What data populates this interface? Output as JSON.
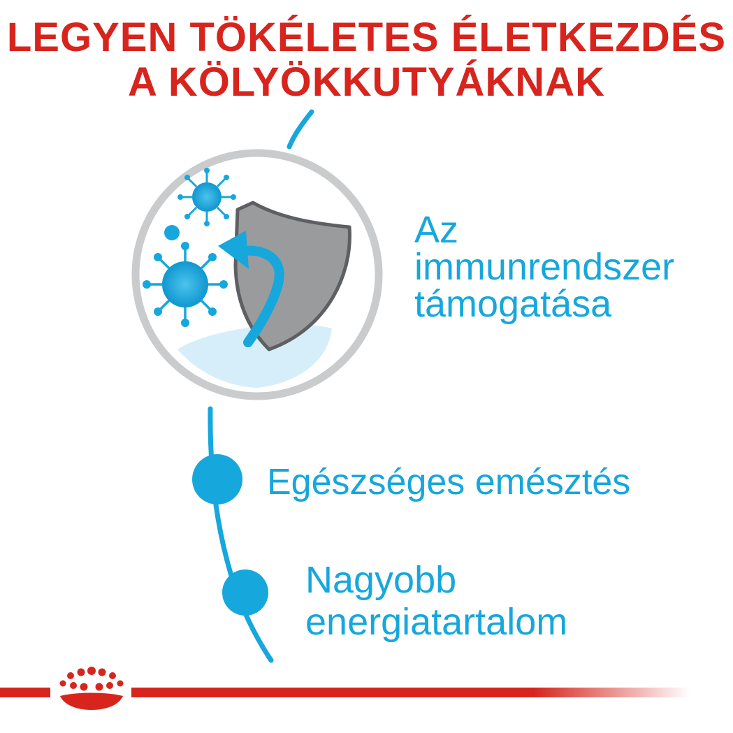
{
  "headline": {
    "line1": "LEGYEN TÖKÉLETES ÉLETKEZDÉS",
    "line2": "A KÖLYÖKKUTYÁKNAK"
  },
  "features": [
    {
      "lines": [
        "Az",
        "immunrendszer",
        "támogatása"
      ]
    },
    {
      "lines": [
        "Egészséges emésztés"
      ]
    },
    {
      "lines": [
        "Nagyobb",
        "energiatartalom"
      ]
    }
  ],
  "colors": {
    "brand_red": "#d7251e",
    "accent_blue": "#16a7dc",
    "ring_grey": "#c9cbcc",
    "shield_grey": "#9a9b9d"
  },
  "icons": {
    "immune": "shield-virus-icon",
    "brand": "royal-canin-crown-logo"
  }
}
